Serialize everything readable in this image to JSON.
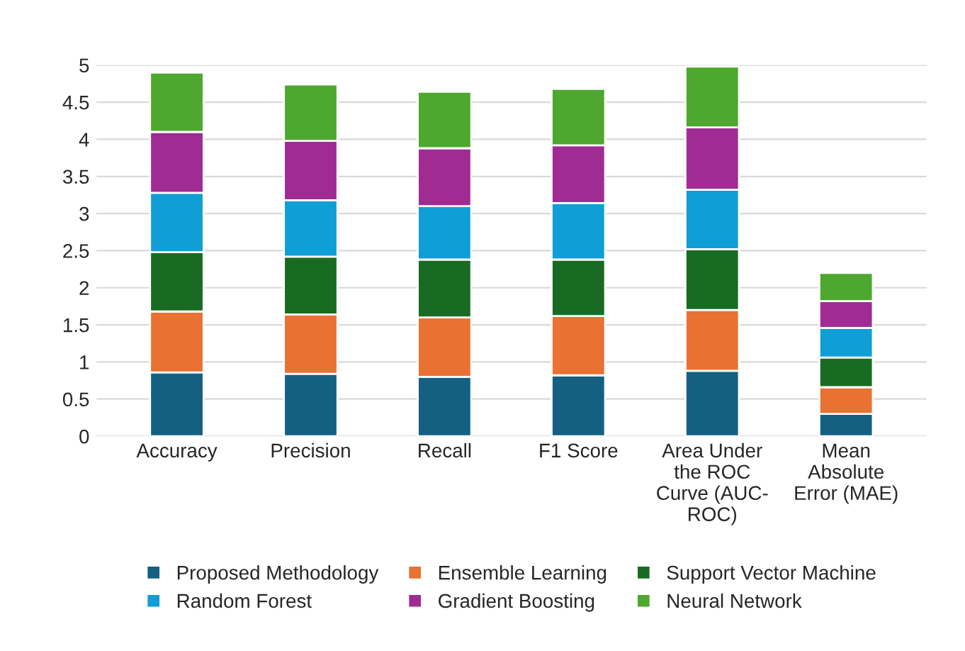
{
  "chart_data": {
    "type": "bar",
    "stacked": true,
    "categories": [
      "Accuracy",
      "Precision",
      "Recall",
      "F1 Score",
      "Area Under\nthe ROC\nCurve (AUC-\nROC)",
      "Mean\nAbsolute\nError (MAE)"
    ],
    "series": [
      {
        "name": "Proposed Methodology",
        "color": "#156082",
        "values": [
          0.86,
          0.84,
          0.8,
          0.82,
          0.88,
          0.3
        ]
      },
      {
        "name": "Ensemble Learning",
        "color": "#e97132",
        "values": [
          0.82,
          0.8,
          0.8,
          0.8,
          0.82,
          0.36
        ]
      },
      {
        "name": "Support Vector Machine",
        "color": "#196b24",
        "values": [
          0.8,
          0.78,
          0.78,
          0.76,
          0.82,
          0.4
        ]
      },
      {
        "name": "Random Forest",
        "color": "#0f9ed5",
        "values": [
          0.8,
          0.76,
          0.72,
          0.76,
          0.8,
          0.4
        ]
      },
      {
        "name": "Gradient Boosting",
        "color": "#a02b93",
        "values": [
          0.82,
          0.8,
          0.78,
          0.78,
          0.84,
          0.36
        ]
      },
      {
        "name": "Neural Network",
        "color": "#4ea72e",
        "values": [
          0.8,
          0.76,
          0.76,
          0.76,
          0.82,
          0.38
        ]
      }
    ],
    "ylim": [
      0,
      5
    ],
    "yticks": [
      0,
      0.5,
      1,
      1.5,
      2,
      2.5,
      3,
      3.5,
      4,
      4.5,
      5
    ],
    "grid": "y",
    "legend": "bottom"
  }
}
